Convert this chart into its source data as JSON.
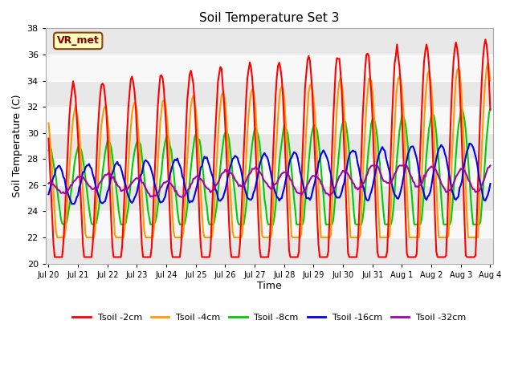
{
  "title": "Soil Temperature Set 3",
  "xlabel": "Time",
  "ylabel": "Soil Temperature (C)",
  "ylim": [
    20,
    38
  ],
  "annotation": "VR_met",
  "xtick_labels": [
    "Jul 20",
    "Jul 21",
    "Jul 22",
    "Jul 23",
    "Jul 24",
    "Jul 25",
    "Jul 26",
    "Jul 27",
    "Jul 28",
    "Jul 29",
    "Jul 30",
    "Jul 31",
    "Aug 1",
    "Aug 2",
    "Aug 3",
    "Aug 4"
  ],
  "series_colors": [
    "#ff0000",
    "#ff9900",
    "#00cc00",
    "#0000ee",
    "#aa00aa"
  ],
  "series_labels": [
    "Tsoil -2cm",
    "Tsoil -4cm",
    "Tsoil -8cm",
    "Tsoil -16cm",
    "Tsoil -32cm"
  ],
  "line_width": 1.5,
  "plot_bg": "#f0f0f0",
  "fig_bg": "#ffffff",
  "band_colors": [
    "#e8e8e8",
    "#f8f8f8"
  ]
}
